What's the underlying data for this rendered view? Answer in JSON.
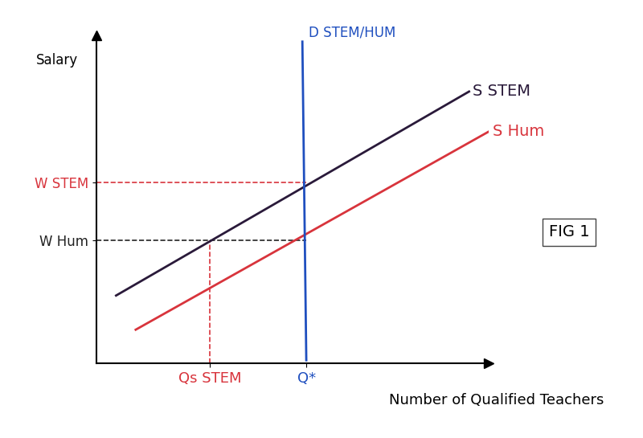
{
  "chart_data": {
    "type": "line",
    "x_label": "Number of Qualified Teachers",
    "y_label": "Salary",
    "annotation": "FIG 1",
    "series": [
      {
        "name": "S STEM",
        "color": "#2a1a3a",
        "x": [
          0.5,
          9.5
        ],
        "values": [
          2.07,
          8.28
        ]
      },
      {
        "name": "S Hum",
        "color": "#d8343c",
        "x": [
          1.0,
          10.0
        ],
        "values": [
          1.03,
          7.06
        ]
      },
      {
        "name": "D STEM/HUM",
        "color": "#1f4fbf",
        "x": [
          5.25,
          5.35
        ],
        "values": [
          9.8,
          0.1
        ]
      }
    ],
    "xlim": [
      0,
      10
    ],
    "ylim": [
      0,
      10
    ],
    "xticks": [
      {
        "value": 2.89,
        "label": "Qs STEM"
      },
      {
        "value": 5.35,
        "label": "Q*"
      }
    ],
    "yticks": [
      {
        "value": 5.52,
        "label": "W STEM"
      },
      {
        "value": 3.75,
        "label": "W Hum"
      }
    ],
    "grid": false
  }
}
